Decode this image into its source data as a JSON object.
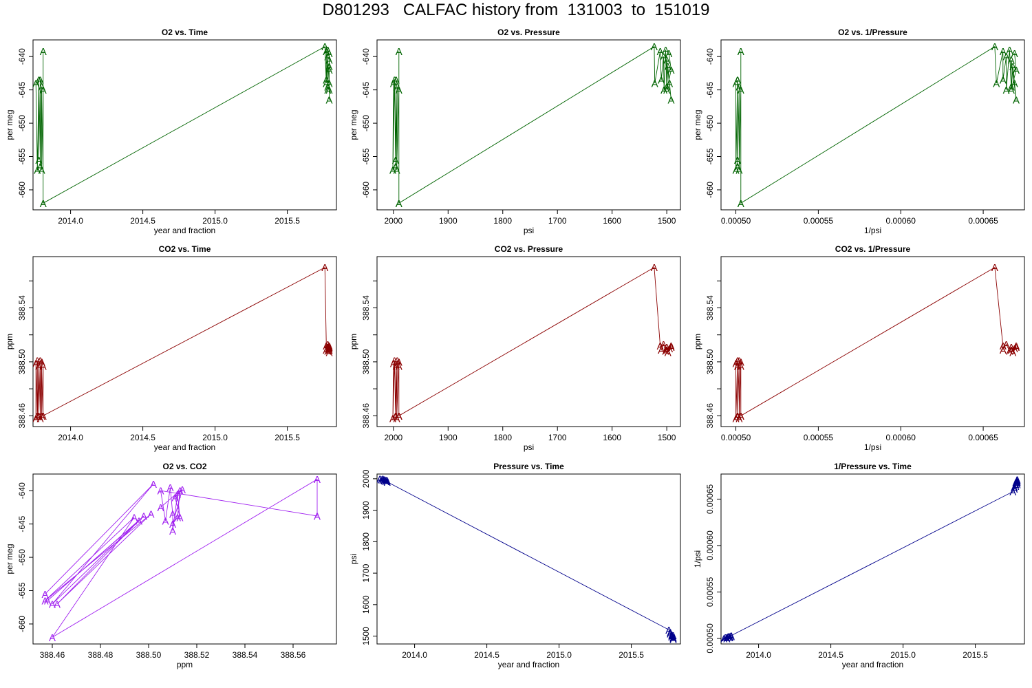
{
  "figure": {
    "title": "D801293   CALFAC history from  131003  to  151019"
  },
  "chart_data": [
    {
      "id": "o2-vs-time",
      "type": "line",
      "title": "O2 vs. Time",
      "xlabel": "year and fraction",
      "ylabel": "per meg",
      "color": "#006400",
      "marker": "A",
      "xlim": [
        2013.74,
        2015.84
      ],
      "ylim": [
        -663.0,
        -637.5
      ],
      "x_reversed": false,
      "xticks": [
        2014.0,
        2014.5,
        2015.0,
        2015.5
      ],
      "xtick_labels": [
        "2014.0",
        "2014.5",
        "2015.0",
        "2015.5"
      ],
      "yticks": [
        -640,
        -645,
        -650,
        -655,
        -660
      ],
      "ytick_labels": [
        "-640",
        "-645",
        "-650",
        "-655",
        "-660"
      ],
      "points": [
        [
          2013.76,
          -644.0
        ],
        [
          2013.77,
          -657.0
        ],
        [
          2013.78,
          -643.5
        ],
        [
          2013.78,
          -655.5
        ],
        [
          2013.79,
          -643.5
        ],
        [
          2013.79,
          -656.5
        ],
        [
          2013.8,
          -644.5
        ],
        [
          2013.8,
          -657.0
        ],
        [
          2013.81,
          -645.0
        ],
        [
          2013.81,
          -639.2
        ],
        [
          2013.81,
          -662.0
        ],
        [
          2015.76,
          -638.5
        ],
        [
          2015.77,
          -644.0
        ],
        [
          2015.77,
          -639.2
        ],
        [
          2015.77,
          -643.5
        ],
        [
          2015.78,
          -640.0
        ],
        [
          2015.78,
          -645.0
        ],
        [
          2015.78,
          -639.0
        ],
        [
          2015.78,
          -644.5
        ],
        [
          2015.79,
          -640.5
        ],
        [
          2015.79,
          -646.5
        ],
        [
          2015.79,
          -644.0
        ],
        [
          2015.79,
          -641.5
        ],
        [
          2015.79,
          -645.0
        ],
        [
          2015.79,
          -642.0
        ],
        [
          2015.79,
          -639.5
        ]
      ]
    },
    {
      "id": "o2-vs-pressure",
      "type": "line",
      "title": "O2 vs. Pressure",
      "xlabel": "psi",
      "ylabel": "per meg",
      "color": "#006400",
      "marker": "A",
      "xlim": [
        2030,
        1475
      ],
      "ylim": [
        -663.0,
        -637.5
      ],
      "x_reversed": true,
      "xticks": [
        2000,
        1900,
        1800,
        1700,
        1600,
        1500
      ],
      "xtick_labels": [
        "2000",
        "1900",
        "1800",
        "1700",
        "1600",
        "1500"
      ],
      "yticks": [
        -640,
        -645,
        -650,
        -655,
        -660
      ],
      "ytick_labels": [
        "-640",
        "-645",
        "-650",
        "-655",
        "-660"
      ],
      "points": [
        [
          2000,
          -644.0
        ],
        [
          2001,
          -657.0
        ],
        [
          1998,
          -643.5
        ],
        [
          1996,
          -655.5
        ],
        [
          1995,
          -643.5
        ],
        [
          1996,
          -656.5
        ],
        [
          1993,
          -644.5
        ],
        [
          1994,
          -657.0
        ],
        [
          1990,
          -645.0
        ],
        [
          1990,
          -639.2
        ],
        [
          1990,
          -662.0
        ],
        [
          1523,
          -638.5
        ],
        [
          1522,
          -644.0
        ],
        [
          1512,
          -639.2
        ],
        [
          1510,
          -643.5
        ],
        [
          1506,
          -640.0
        ],
        [
          1505,
          -645.0
        ],
        [
          1502,
          -639.0
        ],
        [
          1500,
          -644.5
        ],
        [
          1500,
          -640.5
        ],
        [
          1492,
          -646.5
        ],
        [
          1495,
          -644.0
        ],
        [
          1498,
          -641.5
        ],
        [
          1500,
          -645.0
        ],
        [
          1492,
          -642.0
        ],
        [
          1496,
          -639.5
        ]
      ]
    },
    {
      "id": "o2-vs-inverse-pressure",
      "type": "line",
      "title": "O2 vs. 1/Pressure",
      "xlabel": "1/psi",
      "ylabel": "per meg",
      "color": "#006400",
      "marker": "A",
      "xlim": [
        0.000491,
        0.000675
      ],
      "ylim": [
        -663.0,
        -637.5
      ],
      "x_reversed": false,
      "xticks": [
        0.0005,
        0.00055,
        0.0006,
        0.00065
      ],
      "xtick_labels": [
        "0.00050",
        "0.00055",
        "0.00060",
        "0.00065"
      ],
      "yticks": [
        -640,
        -645,
        -650,
        -655,
        -660
      ],
      "ytick_labels": [
        "-640",
        "-645",
        "-650",
        "-655",
        "-660"
      ],
      "points": [
        [
          0.0005,
          -644.0
        ],
        [
          0.0005,
          -657.0
        ],
        [
          0.000501,
          -643.5
        ],
        [
          0.000501,
          -655.5
        ],
        [
          0.000501,
          -643.5
        ],
        [
          0.000501,
          -656.5
        ],
        [
          0.000502,
          -644.5
        ],
        [
          0.000502,
          -657.0
        ],
        [
          0.000503,
          -645.0
        ],
        [
          0.000503,
          -639.2
        ],
        [
          0.000503,
          -662.0
        ],
        [
          0.000657,
          -638.5
        ],
        [
          0.000658,
          -644.0
        ],
        [
          0.000662,
          -639.2
        ],
        [
          0.000662,
          -643.5
        ],
        [
          0.000664,
          -640.0
        ],
        [
          0.000664,
          -645.0
        ],
        [
          0.000666,
          -639.0
        ],
        [
          0.000667,
          -644.5
        ],
        [
          0.000667,
          -640.5
        ],
        [
          0.00067,
          -646.5
        ],
        [
          0.000669,
          -644.0
        ],
        [
          0.000668,
          -641.5
        ],
        [
          0.000667,
          -645.0
        ],
        [
          0.00067,
          -642.0
        ],
        [
          0.000669,
          -639.5
        ]
      ]
    },
    {
      "id": "co2-vs-time",
      "type": "line",
      "title": "CO2 vs. Time",
      "xlabel": "year and fraction",
      "ylabel": "ppm",
      "color": "#8b0000",
      "marker": "A",
      "xlim": [
        2013.74,
        2015.84
      ],
      "ylim": [
        388.452,
        388.578
      ],
      "x_reversed": false,
      "xticks": [
        2014.0,
        2014.5,
        2015.0,
        2015.5
      ],
      "xtick_labels": [
        "2014.0",
        "2014.5",
        "2015.0",
        "2015.5"
      ],
      "yticks": [
        388.46,
        388.48,
        388.5,
        388.52,
        388.54,
        388.56
      ],
      "ytick_labels": [
        "388.46",
        "",
        "388.50",
        "",
        "388.54",
        ""
      ],
      "points": [
        [
          2013.76,
          388.499
        ],
        [
          2013.76,
          388.458
        ],
        [
          2013.77,
          388.501
        ],
        [
          2013.77,
          388.46
        ],
        [
          2013.78,
          388.497
        ],
        [
          2013.78,
          388.46
        ],
        [
          2013.79,
          388.501
        ],
        [
          2013.79,
          388.458
        ],
        [
          2013.8,
          388.5
        ],
        [
          2013.8,
          388.46
        ],
        [
          2013.81,
          388.497
        ],
        [
          2013.81,
          388.46
        ],
        [
          2015.76,
          388.57
        ],
        [
          2015.77,
          388.512
        ],
        [
          2015.77,
          388.509
        ],
        [
          2015.78,
          388.513
        ],
        [
          2015.78,
          388.508
        ],
        [
          2015.78,
          388.511
        ],
        [
          2015.79,
          388.509
        ],
        [
          2015.79,
          388.512
        ],
        [
          2015.79,
          388.51
        ],
        [
          2015.79,
          388.507
        ],
        [
          2015.79,
          388.511
        ]
      ]
    },
    {
      "id": "co2-vs-pressure",
      "type": "line",
      "title": "CO2 vs. Pressure",
      "xlabel": "psi",
      "ylabel": "ppm",
      "color": "#8b0000",
      "marker": "A",
      "xlim": [
        2030,
        1475
      ],
      "ylim": [
        388.452,
        388.578
      ],
      "x_reversed": true,
      "xticks": [
        2000,
        1900,
        1800,
        1700,
        1600,
        1500
      ],
      "xtick_labels": [
        "2000",
        "1900",
        "1800",
        "1700",
        "1600",
        "1500"
      ],
      "yticks": [
        388.46,
        388.48,
        388.5,
        388.52,
        388.54,
        388.56
      ],
      "ytick_labels": [
        "388.46",
        "",
        "388.50",
        "",
        "388.54",
        ""
      ],
      "points": [
        [
          2000,
          388.499
        ],
        [
          2001,
          388.458
        ],
        [
          1998,
          388.501
        ],
        [
          1996,
          388.46
        ],
        [
          1995,
          388.497
        ],
        [
          1996,
          388.46
        ],
        [
          1993,
          388.501
        ],
        [
          1994,
          388.458
        ],
        [
          1990,
          388.5
        ],
        [
          1990,
          388.46
        ],
        [
          1990,
          388.497
        ],
        [
          1990,
          388.46
        ],
        [
          1523,
          388.57
        ],
        [
          1512,
          388.512
        ],
        [
          1510,
          388.509
        ],
        [
          1506,
          388.513
        ],
        [
          1502,
          388.508
        ],
        [
          1500,
          388.511
        ],
        [
          1500,
          388.509
        ],
        [
          1492,
          388.512
        ],
        [
          1495,
          388.51
        ],
        [
          1498,
          388.507
        ],
        [
          1492,
          388.511
        ]
      ]
    },
    {
      "id": "co2-vs-inverse-pressure",
      "type": "line",
      "title": "CO2 vs. 1/Pressure",
      "xlabel": "1/psi",
      "ylabel": "ppm",
      "color": "#8b0000",
      "marker": "A",
      "xlim": [
        0.000491,
        0.000675
      ],
      "ylim": [
        388.452,
        388.578
      ],
      "x_reversed": false,
      "xticks": [
        0.0005,
        0.00055,
        0.0006,
        0.00065
      ],
      "xtick_labels": [
        "0.00050",
        "0.00055",
        "0.00060",
        "0.00065"
      ],
      "yticks": [
        388.46,
        388.48,
        388.5,
        388.52,
        388.54,
        388.56
      ],
      "ytick_labels": [
        "388.46",
        "",
        "388.50",
        "",
        "388.54",
        ""
      ],
      "points": [
        [
          0.0005,
          388.499
        ],
        [
          0.0005,
          388.458
        ],
        [
          0.000501,
          388.501
        ],
        [
          0.000501,
          388.46
        ],
        [
          0.000501,
          388.497
        ],
        [
          0.000501,
          388.46
        ],
        [
          0.000502,
          388.501
        ],
        [
          0.000502,
          388.458
        ],
        [
          0.000503,
          388.5
        ],
        [
          0.000503,
          388.46
        ],
        [
          0.000503,
          388.497
        ],
        [
          0.000503,
          388.46
        ],
        [
          0.000657,
          388.57
        ],
        [
          0.000662,
          388.512
        ],
        [
          0.000662,
          388.509
        ],
        [
          0.000664,
          388.513
        ],
        [
          0.000666,
          388.508
        ],
        [
          0.000667,
          388.511
        ],
        [
          0.000667,
          388.509
        ],
        [
          0.00067,
          388.512
        ],
        [
          0.000669,
          388.51
        ],
        [
          0.000668,
          388.507
        ],
        [
          0.00067,
          388.511
        ]
      ]
    },
    {
      "id": "o2-vs-co2",
      "type": "line",
      "title": "O2 vs. CO2",
      "xlabel": "ppm",
      "ylabel": "per meg",
      "color": "#a020f0",
      "marker": "A",
      "xlim": [
        388.452,
        388.578
      ],
      "ylim": [
        -663.0,
        -637.5
      ],
      "x_reversed": false,
      "xticks": [
        388.46,
        388.48,
        388.5,
        388.52,
        388.54,
        388.56
      ],
      "xtick_labels": [
        "388.46",
        "388.48",
        "388.50",
        "388.52",
        "388.54",
        "388.56"
      ],
      "yticks": [
        -640,
        -645,
        -650,
        -655,
        -660
      ],
      "ytick_labels": [
        "-640",
        "-645",
        "-650",
        "-655",
        "-660"
      ],
      "points": [
        [
          388.457,
          -655.5
        ],
        [
          388.502,
          -639.0
        ],
        [
          388.46,
          -657.0
        ],
        [
          388.498,
          -643.8
        ],
        [
          388.458,
          -656.5
        ],
        [
          388.496,
          -644.5
        ],
        [
          388.462,
          -657.0
        ],
        [
          388.501,
          -643.5
        ],
        [
          388.457,
          -656.5
        ],
        [
          388.494,
          -644.0
        ],
        [
          388.46,
          -662.0
        ],
        [
          388.57,
          -638.3
        ],
        [
          388.57,
          -643.8
        ],
        [
          388.505,
          -640.0
        ],
        [
          388.507,
          -644.5
        ],
        [
          388.509,
          -639.5
        ],
        [
          388.51,
          -643.5
        ],
        [
          388.51,
          -646.0
        ],
        [
          388.512,
          -640.5
        ],
        [
          388.513,
          -644.0
        ],
        [
          388.511,
          -641.0
        ],
        [
          388.514,
          -639.8
        ],
        [
          388.51,
          -645.0
        ],
        [
          388.512,
          -644.0
        ],
        [
          388.513,
          -640.0
        ],
        [
          388.505,
          -642.5
        ]
      ]
    },
    {
      "id": "pressure-vs-time",
      "type": "line",
      "title": "Pressure vs. Time",
      "xlabel": "year and fraction",
      "ylabel": "psi",
      "color": "#00008b",
      "marker": "A",
      "xlim": [
        2013.74,
        2015.84
      ],
      "ylim": [
        1475,
        2015
      ],
      "x_reversed": false,
      "xticks": [
        2014.0,
        2014.5,
        2015.0,
        2015.5
      ],
      "xtick_labels": [
        "2014.0",
        "2014.5",
        "2015.0",
        "2015.5"
      ],
      "yticks": [
        1500,
        1600,
        1700,
        1800,
        1900,
        2000
      ],
      "ytick_labels": [
        "1500",
        "1600",
        "1700",
        "1800",
        "1900",
        "2000"
      ],
      "points": [
        [
          2013.76,
          2000
        ],
        [
          2013.77,
          1998
        ],
        [
          2013.78,
          1996
        ],
        [
          2013.78,
          2000
        ],
        [
          2013.79,
          1994
        ],
        [
          2013.79,
          1998
        ],
        [
          2013.8,
          1992
        ],
        [
          2013.8,
          1996
        ],
        [
          2013.81,
          1990
        ],
        [
          2013.81,
          1994
        ],
        [
          2013.81,
          1990
        ],
        [
          2015.76,
          1520
        ],
        [
          2015.77,
          1512
        ],
        [
          2015.77,
          1508
        ],
        [
          2015.78,
          1505
        ],
        [
          2015.78,
          1501
        ],
        [
          2015.78,
          1498
        ],
        [
          2015.79,
          1495
        ],
        [
          2015.79,
          1502
        ],
        [
          2015.79,
          1492
        ],
        [
          2015.79,
          1497
        ],
        [
          2015.79,
          1490
        ]
      ]
    },
    {
      "id": "inverse-pressure-vs-time",
      "type": "line",
      "title": "1/Pressure vs. Time",
      "xlabel": "year and fraction",
      "ylabel": "1/psi",
      "color": "#00008b",
      "marker": "A",
      "xlim": [
        2013.74,
        2015.84
      ],
      "ylim": [
        0.000494,
        0.000677
      ],
      "x_reversed": false,
      "xticks": [
        2014.0,
        2014.5,
        2015.0,
        2015.5
      ],
      "xtick_labels": [
        "2014.0",
        "2014.5",
        "2015.0",
        "2015.5"
      ],
      "yticks": [
        0.0005,
        0.00055,
        0.0006,
        0.00065
      ],
      "ytick_labels": [
        "0.00050",
        "0.00055",
        "0.00060",
        "0.00065"
      ],
      "points": [
        [
          2013.76,
          0.0005
        ],
        [
          2013.77,
          0.000501
        ],
        [
          2013.78,
          0.000501
        ],
        [
          2013.78,
          0.0005
        ],
        [
          2013.79,
          0.000502
        ],
        [
          2013.79,
          0.000501
        ],
        [
          2013.8,
          0.000502
        ],
        [
          2013.8,
          0.000501
        ],
        [
          2013.81,
          0.000503
        ],
        [
          2013.81,
          0.000502
        ],
        [
          2013.81,
          0.000503
        ],
        [
          2015.76,
          0.000658
        ],
        [
          2015.77,
          0.000661
        ],
        [
          2015.77,
          0.000663
        ],
        [
          2015.78,
          0.000664
        ],
        [
          2015.78,
          0.000666
        ],
        [
          2015.78,
          0.000668
        ],
        [
          2015.79,
          0.000669
        ],
        [
          2015.79,
          0.000666
        ],
        [
          2015.79,
          0.00067
        ],
        [
          2015.79,
          0.000668
        ],
        [
          2015.79,
          0.000671
        ]
      ]
    }
  ]
}
